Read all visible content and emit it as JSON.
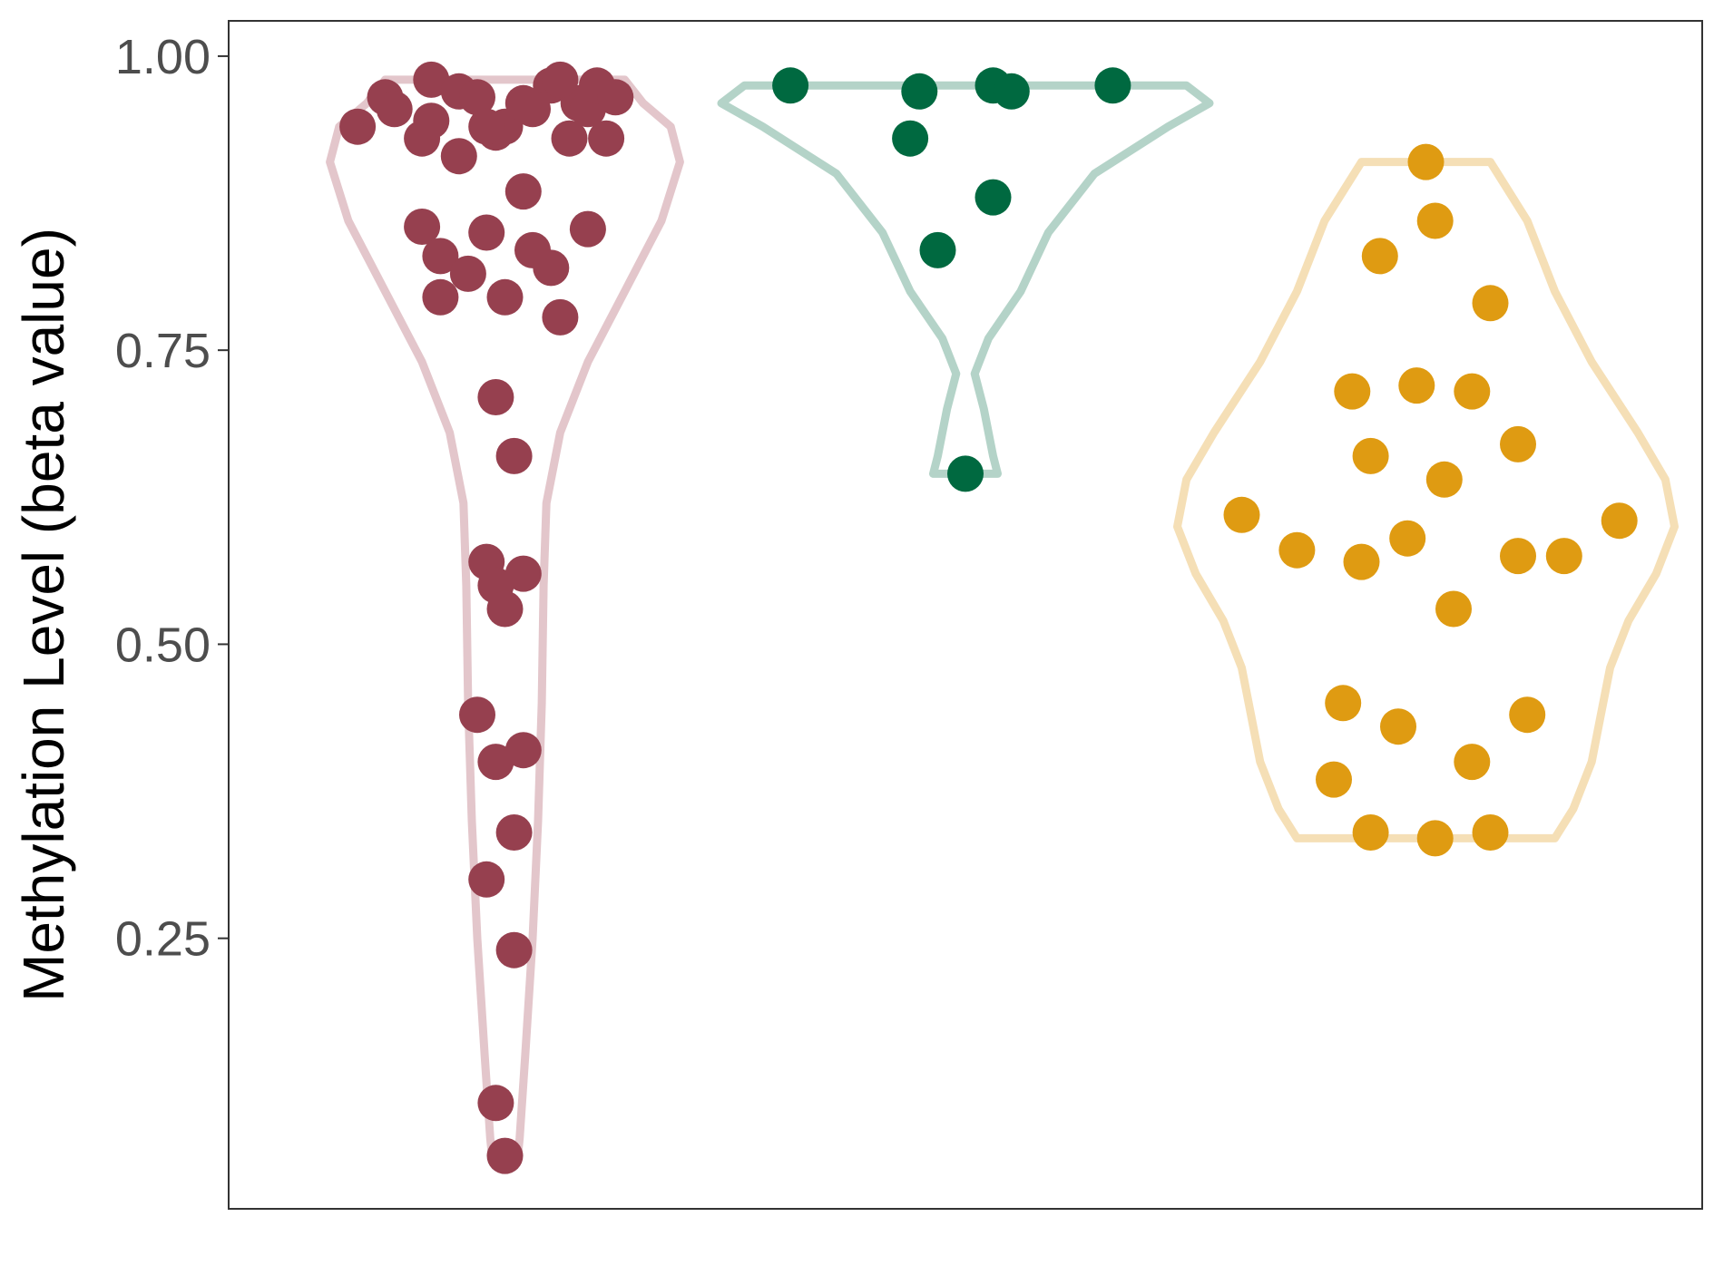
{
  "chart_data": {
    "type": "violin",
    "title": "",
    "xlabel": "",
    "ylabel": "Methylation Level (beta value)",
    "ylim": [
      0.02,
      1.03
    ],
    "yticks": [
      {
        "value": 0.25,
        "label": "0.25"
      },
      {
        "value": 0.5,
        "label": "0.50"
      },
      {
        "value": 0.75,
        "label": "0.75"
      },
      {
        "value": 1.0,
        "label": "1.00"
      }
    ],
    "grid": false,
    "legend": "none",
    "series": [
      {
        "color": "#96404f",
        "outline_color": "#e3c6cb",
        "range": [
          0.065,
          0.98
        ],
        "outline": [
          [
            0.065,
            0.014
          ],
          [
            0.08,
            0.016
          ],
          [
            0.15,
            0.022
          ],
          [
            0.25,
            0.03
          ],
          [
            0.35,
            0.036
          ],
          [
            0.45,
            0.04
          ],
          [
            0.55,
            0.042
          ],
          [
            0.62,
            0.045
          ],
          [
            0.68,
            0.06
          ],
          [
            0.74,
            0.09
          ],
          [
            0.8,
            0.13
          ],
          [
            0.86,
            0.17
          ],
          [
            0.91,
            0.19
          ],
          [
            0.94,
            0.18
          ],
          [
            0.96,
            0.15
          ],
          [
            0.98,
            0.13
          ]
        ],
        "values": [
          0.94,
          0.965,
          0.955,
          0.98,
          0.97,
          0.965,
          0.93,
          0.945,
          0.975,
          0.96,
          0.955,
          0.98,
          0.975,
          0.965,
          0.955,
          0.935,
          0.93,
          0.94,
          0.94,
          0.915,
          0.93,
          0.96,
          0.885,
          0.855,
          0.83,
          0.815,
          0.795,
          0.85,
          0.835,
          0.82,
          0.795,
          0.778,
          0.853,
          0.71,
          0.66,
          0.57,
          0.55,
          0.53,
          0.56,
          0.44,
          0.4,
          0.41,
          0.34,
          0.3,
          0.24,
          0.11,
          0.065
        ],
        "jitter": [
          -0.16,
          -0.13,
          -0.12,
          -0.08,
          -0.05,
          -0.03,
          -0.09,
          -0.08,
          0.05,
          0.08,
          0.09,
          0.06,
          0.1,
          0.12,
          0.03,
          -0.01,
          0.07,
          0.0,
          -0.02,
          -0.05,
          0.11,
          0.02,
          0.02,
          -0.09,
          -0.07,
          -0.04,
          -0.07,
          -0.02,
          0.03,
          0.05,
          0.0,
          0.06,
          0.09,
          -0.01,
          0.01,
          -0.02,
          -0.01,
          0.0,
          0.02,
          -0.03,
          -0.01,
          0.02,
          0.01,
          -0.02,
          0.01,
          -0.01,
          0.0
        ]
      },
      {
        "color": "#006940",
        "outline_color": "#b4d3c8",
        "range": [
          0.645,
          0.975
        ],
        "outline": [
          [
            0.645,
            0.035
          ],
          [
            0.66,
            0.03
          ],
          [
            0.7,
            0.02
          ],
          [
            0.73,
            0.01
          ],
          [
            0.76,
            0.025
          ],
          [
            0.8,
            0.06
          ],
          [
            0.85,
            0.09
          ],
          [
            0.9,
            0.14
          ],
          [
            0.94,
            0.22
          ],
          [
            0.96,
            0.265
          ],
          [
            0.975,
            0.24
          ]
        ],
        "values": [
          0.975,
          0.97,
          0.975,
          0.97,
          0.975,
          0.93,
          0.88,
          0.835,
          0.645
        ],
        "jitter": [
          -0.19,
          -0.05,
          0.03,
          0.05,
          0.16,
          -0.06,
          0.03,
          -0.03,
          0.0
        ]
      },
      {
        "color": "#df9b12",
        "outline_color": "#f5dfb6",
        "range": [
          0.335,
          0.91
        ],
        "outline": [
          [
            0.335,
            0.14
          ],
          [
            0.36,
            0.16
          ],
          [
            0.4,
            0.18
          ],
          [
            0.44,
            0.19
          ],
          [
            0.48,
            0.2
          ],
          [
            0.52,
            0.22
          ],
          [
            0.56,
            0.25
          ],
          [
            0.6,
            0.27
          ],
          [
            0.64,
            0.26
          ],
          [
            0.68,
            0.23
          ],
          [
            0.74,
            0.18
          ],
          [
            0.8,
            0.14
          ],
          [
            0.86,
            0.11
          ],
          [
            0.91,
            0.07
          ]
        ],
        "values": [
          0.91,
          0.86,
          0.83,
          0.79,
          0.715,
          0.72,
          0.715,
          0.67,
          0.66,
          0.64,
          0.61,
          0.605,
          0.59,
          0.58,
          0.575,
          0.57,
          0.575,
          0.53,
          0.45,
          0.43,
          0.44,
          0.4,
          0.385,
          0.34,
          0.335,
          0.34
        ],
        "jitter": [
          0.0,
          0.01,
          -0.05,
          0.07,
          -0.08,
          -0.01,
          0.05,
          0.1,
          -0.06,
          0.02,
          -0.2,
          0.21,
          -0.02,
          -0.14,
          0.1,
          -0.07,
          0.15,
          0.03,
          -0.09,
          -0.03,
          0.11,
          0.05,
          -0.1,
          -0.06,
          0.01,
          0.07
        ]
      }
    ]
  }
}
